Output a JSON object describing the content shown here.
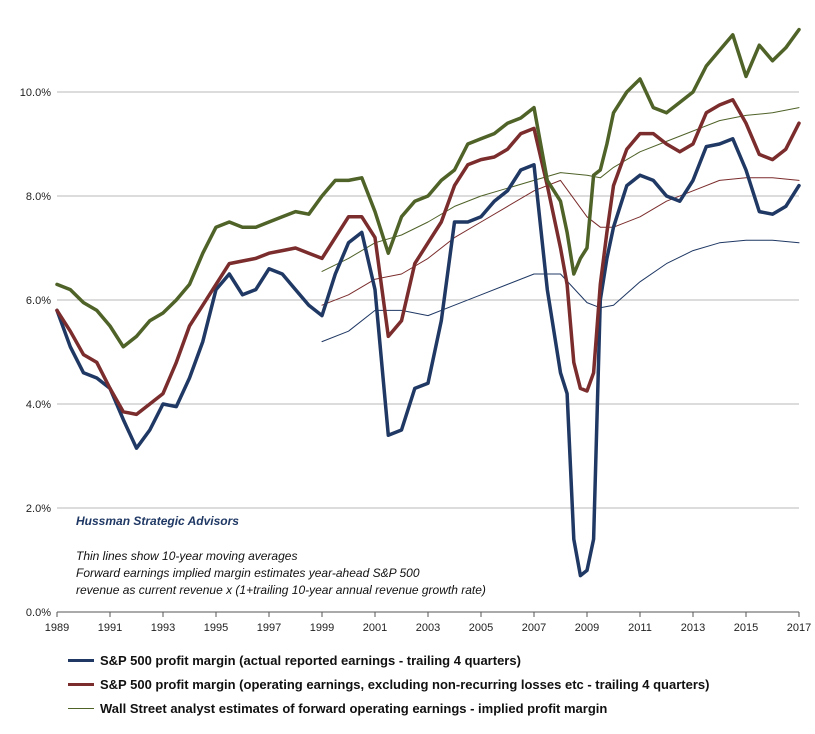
{
  "chart_data": {
    "type": "line",
    "xlim": [
      1989,
      2017
    ],
    "ylim": [
      0,
      11.5
    ],
    "x_ticks": [
      "1989",
      "1991",
      "1993",
      "1995",
      "1997",
      "1999",
      "2001",
      "2003",
      "2005",
      "2007",
      "2009",
      "2011",
      "2013",
      "2015",
      "2017"
    ],
    "y_ticks": [
      "0.0%",
      "2.0%",
      "4.0%",
      "6.0%",
      "8.0%",
      "10.0%"
    ],
    "y_tick_values": [
      0,
      2,
      4,
      6,
      8,
      10
    ],
    "grid": "horizontal",
    "legend_position": "bottom",
    "annotations": {
      "brand": "Hussman Strategic Advisors",
      "line1": "Thin lines show 10-year moving averages",
      "line2": "Forward earnings implied margin estimates year-ahead S&P 500",
      "line3": "revenue as current revenue  x (1+trailing 10-year annual revenue growth rate)"
    },
    "series": [
      {
        "name": "S&P 500 profit margin (actual reported earnings - trailing 4 quarters)",
        "color": "#1f3864",
        "width": 3.5,
        "x": [
          1989,
          1989.5,
          1990,
          1990.5,
          1991,
          1991.5,
          1992,
          1992.5,
          1993,
          1993.5,
          1994,
          1994.5,
          1995,
          1995.5,
          1996,
          1996.5,
          1997,
          1997.5,
          1998,
          1998.5,
          1999,
          1999.5,
          2000,
          2000.5,
          2001,
          2001.5,
          2002,
          2002.5,
          2003,
          2003.5,
          2004,
          2004.5,
          2005,
          2005.5,
          2006,
          2006.5,
          2007,
          2007.5,
          2008,
          2008.25,
          2008.5,
          2008.75,
          2009,
          2009.25,
          2009.5,
          2009.75,
          2010,
          2010.5,
          2011,
          2011.5,
          2012,
          2012.5,
          2013,
          2013.5,
          2014,
          2014.5,
          2015,
          2015.5,
          2016,
          2016.5,
          2017
        ],
        "y": [
          5.8,
          5.1,
          4.6,
          4.5,
          4.3,
          3.7,
          3.15,
          3.5,
          4.0,
          3.95,
          4.5,
          5.2,
          6.2,
          6.5,
          6.1,
          6.2,
          6.6,
          6.5,
          6.2,
          5.9,
          5.7,
          6.5,
          7.1,
          7.3,
          6.2,
          3.4,
          3.5,
          4.3,
          4.4,
          5.6,
          7.5,
          7.5,
          7.6,
          7.9,
          8.1,
          8.5,
          8.6,
          6.2,
          4.6,
          4.2,
          1.4,
          0.7,
          0.8,
          1.4,
          6.0,
          6.8,
          7.4,
          8.2,
          8.4,
          8.3,
          8.0,
          7.9,
          8.3,
          8.95,
          9.0,
          9.1,
          8.5,
          7.7,
          7.65,
          7.8,
          8.2
        ]
      },
      {
        "name": "S&P 500 profit margin (operating earnings, excluding non-recurring losses etc - trailing 4 quarters)",
        "color": "#7b2c2c",
        "width": 3.5,
        "x": [
          1989,
          1989.5,
          1990,
          1990.5,
          1991,
          1991.5,
          1992,
          1992.5,
          1993,
          1993.5,
          1994,
          1994.5,
          1995,
          1995.5,
          1996,
          1996.5,
          1997,
          1997.5,
          1998,
          1998.5,
          1999,
          1999.5,
          2000,
          2000.5,
          2001,
          2001.5,
          2002,
          2002.5,
          2003,
          2003.5,
          2004,
          2004.5,
          2005,
          2005.5,
          2006,
          2006.5,
          2007,
          2007.5,
          2008,
          2008.25,
          2008.5,
          2008.75,
          2009,
          2009.25,
          2009.5,
          2009.75,
          2010,
          2010.5,
          2011,
          2011.5,
          2012,
          2012.5,
          2013,
          2013.5,
          2014,
          2014.5,
          2015,
          2015.5,
          2016,
          2016.5,
          2017
        ],
        "y": [
          5.8,
          5.4,
          4.95,
          4.8,
          4.3,
          3.85,
          3.8,
          4.0,
          4.2,
          4.8,
          5.5,
          5.9,
          6.3,
          6.7,
          6.75,
          6.8,
          6.9,
          6.95,
          7.0,
          6.9,
          6.8,
          7.2,
          7.6,
          7.6,
          7.2,
          5.3,
          5.6,
          6.7,
          7.1,
          7.5,
          8.2,
          8.6,
          8.7,
          8.75,
          8.9,
          9.2,
          9.3,
          8.2,
          7.0,
          6.3,
          4.8,
          4.3,
          4.25,
          4.6,
          6.3,
          7.3,
          8.2,
          8.9,
          9.2,
          9.2,
          9.0,
          8.85,
          9.0,
          9.6,
          9.75,
          9.85,
          9.4,
          8.8,
          8.7,
          8.9,
          9.4
        ]
      },
      {
        "name": "Wall Street analyst estimates of forward operating earnings - implied profit margin",
        "color": "#4f6228",
        "width": 3.5,
        "x": [
          1989,
          1989.5,
          1990,
          1990.5,
          1991,
          1991.5,
          1992,
          1992.5,
          1993,
          1993.5,
          1994,
          1994.5,
          1995,
          1995.5,
          1996,
          1996.5,
          1997,
          1997.5,
          1998,
          1998.5,
          1999,
          1999.5,
          2000,
          2000.5,
          2001,
          2001.5,
          2002,
          2002.5,
          2003,
          2003.5,
          2004,
          2004.5,
          2005,
          2005.5,
          2006,
          2006.5,
          2007,
          2007.5,
          2008,
          2008.25,
          2008.5,
          2008.75,
          2009,
          2009.25,
          2009.5,
          2009.75,
          2010,
          2010.5,
          2011,
          2011.5,
          2012,
          2012.5,
          2013,
          2013.5,
          2014,
          2014.5,
          2015,
          2015.5,
          2016,
          2016.5,
          2017
        ],
        "y": [
          6.3,
          6.2,
          5.95,
          5.8,
          5.5,
          5.1,
          5.3,
          5.6,
          5.75,
          6.0,
          6.3,
          6.9,
          7.4,
          7.5,
          7.4,
          7.4,
          7.5,
          7.6,
          7.7,
          7.65,
          8.0,
          8.3,
          8.3,
          8.35,
          7.7,
          6.9,
          7.6,
          7.9,
          8.0,
          8.3,
          8.5,
          9.0,
          9.1,
          9.2,
          9.4,
          9.5,
          9.7,
          8.3,
          7.9,
          7.3,
          6.5,
          6.8,
          7.0,
          8.4,
          8.5,
          9.0,
          9.6,
          10.0,
          10.25,
          9.7,
          9.6,
          9.8,
          10.0,
          10.5,
          10.8,
          11.1,
          10.3,
          10.9,
          10.6,
          10.85,
          11.2
        ]
      },
      {
        "name": "",
        "color": "#1f3864",
        "width": 1,
        "x": [
          1999,
          2000,
          2001,
          2002,
          2003,
          2004,
          2005,
          2006,
          2007,
          2008,
          2009,
          2009.5,
          2010,
          2011,
          2012,
          2013,
          2014,
          2015,
          2016,
          2017
        ],
        "y": [
          5.2,
          5.4,
          5.8,
          5.8,
          5.7,
          5.9,
          6.1,
          6.3,
          6.5,
          6.5,
          5.95,
          5.85,
          5.9,
          6.35,
          6.7,
          6.95,
          7.1,
          7.15,
          7.15,
          7.1
        ]
      },
      {
        "name": "",
        "color": "#7b2c2c",
        "width": 1,
        "x": [
          1999,
          2000,
          2001,
          2002,
          2003,
          2004,
          2005,
          2006,
          2007,
          2008,
          2009,
          2009.5,
          2010,
          2011,
          2012,
          2013,
          2014,
          2015,
          2016,
          2017
        ],
        "y": [
          5.9,
          6.1,
          6.4,
          6.5,
          6.8,
          7.2,
          7.5,
          7.8,
          8.1,
          8.3,
          7.6,
          7.4,
          7.4,
          7.6,
          7.9,
          8.1,
          8.3,
          8.35,
          8.35,
          8.3
        ]
      },
      {
        "name": "",
        "color": "#4f6228",
        "width": 1,
        "x": [
          1999,
          2000,
          2001,
          2002,
          2003,
          2004,
          2005,
          2006,
          2007,
          2008,
          2009,
          2009.5,
          2010,
          2011,
          2012,
          2013,
          2014,
          2015,
          2016,
          2017
        ],
        "y": [
          6.55,
          6.8,
          7.1,
          7.25,
          7.5,
          7.8,
          8.0,
          8.15,
          8.3,
          8.45,
          8.4,
          8.35,
          8.55,
          8.85,
          9.05,
          9.25,
          9.45,
          9.55,
          9.6,
          9.7
        ]
      }
    ]
  }
}
